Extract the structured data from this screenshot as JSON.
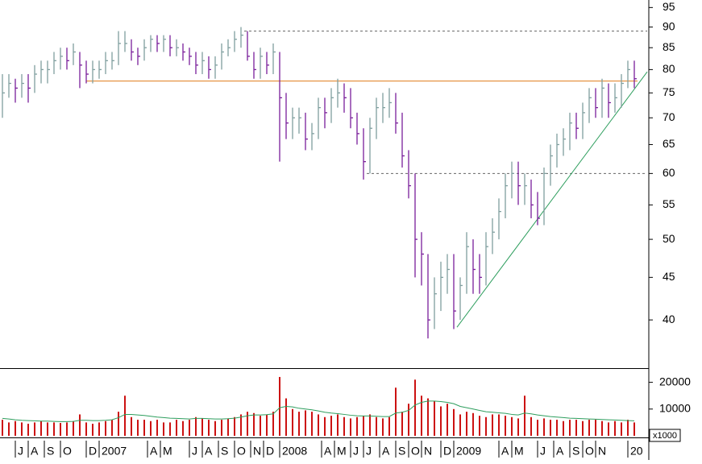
{
  "chart_data": {
    "type": "ohlc",
    "high": [
      79,
      79,
      78,
      79,
      79,
      81,
      82,
      82,
      84,
      85,
      85,
      86,
      84,
      82,
      82,
      82,
      84,
      84,
      89,
      89,
      87,
      85,
      87,
      88,
      88,
      88,
      88,
      87,
      86,
      85,
      84,
      84,
      83,
      83,
      86,
      87,
      89,
      90,
      89,
      84,
      85,
      84,
      86,
      84,
      75,
      72,
      72,
      71,
      69,
      74,
      74,
      76,
      78,
      77,
      76,
      71,
      68,
      70,
      74,
      75,
      76,
      75,
      71,
      64,
      60,
      51,
      48,
      45,
      47,
      48,
      48,
      45,
      51,
      50,
      48,
      51,
      53,
      56,
      60,
      62,
      62,
      60,
      59,
      57,
      61,
      65,
      67,
      68,
      71,
      71,
      73,
      76,
      76,
      78,
      77,
      77,
      79,
      82,
      82
    ],
    "low": [
      70,
      74,
      73,
      74,
      73,
      75,
      77,
      77,
      79,
      80,
      80,
      81,
      76,
      77,
      77,
      78,
      79,
      80,
      81,
      84,
      82,
      81,
      82,
      84,
      84,
      84,
      83,
      83,
      82,
      81,
      79,
      79,
      78,
      78,
      80,
      83,
      84,
      85,
      82,
      78,
      78,
      79,
      79,
      62,
      66,
      66,
      67,
      64,
      64,
      66,
      68,
      69,
      72,
      71,
      68,
      65,
      59,
      60,
      66,
      69,
      70,
      67,
      61,
      56,
      45,
      44,
      38,
      39,
      41,
      43,
      39,
      40,
      43,
      43,
      43,
      44,
      48,
      50,
      53,
      56,
      55,
      55,
      53,
      52,
      52,
      58,
      61,
      63,
      64,
      66,
      66,
      69,
      70,
      70,
      70,
      71,
      72,
      76,
      76
    ],
    "close": [
      75,
      77,
      76,
      77,
      76,
      79,
      80,
      80,
      82,
      83,
      82,
      84,
      81,
      79,
      80,
      80,
      82,
      82,
      86,
      86,
      84,
      83,
      85,
      87,
      86,
      87,
      85,
      85,
      84,
      83,
      81,
      82,
      80,
      81,
      84,
      85,
      87,
      88,
      83,
      80,
      83,
      81,
      84,
      74,
      69,
      70,
      70,
      66,
      67,
      72,
      71,
      74,
      75,
      74,
      70,
      67,
      62,
      68,
      72,
      72,
      73,
      69,
      63,
      58,
      50,
      48,
      40,
      43,
      45,
      46,
      41,
      44,
      49,
      46,
      45,
      49,
      51,
      54,
      58,
      60,
      58,
      58,
      55,
      53,
      60,
      63,
      65,
      66,
      69,
      68,
      71,
      74,
      72,
      76,
      73,
      74,
      77,
      80,
      78
    ],
    "up_color": "#7f9f9f",
    "down_color": "#7a1e9a",
    "ylim": [
      35,
      97
    ],
    "log_scale": true,
    "yticks": [
      40,
      45,
      50,
      55,
      60,
      65,
      70,
      75,
      80,
      85,
      90,
      95
    ],
    "reference_lines": [
      {
        "value": 77.5,
        "start": 13,
        "end": 98.5,
        "color": "#e07b1a",
        "style": "solid"
      },
      {
        "value": 89,
        "start": 37.5,
        "end": 100,
        "color": "#666666",
        "style": "dashed"
      },
      {
        "value": 60,
        "start": 56.5,
        "end": 100,
        "color": "#666666",
        "style": "dashed"
      }
    ],
    "trendline": {
      "start": [
        70.5,
        39.2
      ],
      "end": [
        100,
        79.5
      ],
      "color": "#2e9e5e"
    },
    "volume": {
      "values": [
        6000,
        5000,
        5500,
        5000,
        4500,
        5000,
        5500,
        5000,
        5000,
        4800,
        5000,
        5500,
        8000,
        5000,
        4500,
        5000,
        5500,
        6000,
        9000,
        15000,
        7000,
        6000,
        6000,
        5500,
        6000,
        5000,
        5000,
        6000,
        5500,
        6000,
        7000,
        6500,
        6000,
        5500,
        6000,
        6500,
        7000,
        8000,
        9000,
        8500,
        7500,
        8000,
        9000,
        22000,
        14000,
        10000,
        9000,
        9500,
        9000,
        8000,
        7000,
        7500,
        8000,
        7000,
        6500,
        7000,
        7500,
        8000,
        7000,
        6500,
        7000,
        18000,
        9000,
        12000,
        21000,
        15000,
        14000,
        13000,
        11000,
        12000,
        10000,
        8000,
        9000,
        8500,
        7500,
        7000,
        8000,
        8000,
        7500,
        7000,
        6500,
        15000,
        7000,
        6000,
        6500,
        6000,
        6000,
        5500,
        6000,
        6000,
        5500,
        6000,
        6000,
        5500,
        5000,
        5500,
        5000,
        6000,
        5000
      ],
      "color": "#cc1111",
      "average": [
        6500,
        6300,
        6000,
        5800,
        5700,
        5600,
        5500,
        5500,
        5400,
        5300,
        5300,
        5400,
        5800,
        5800,
        5700,
        5700,
        5800,
        6000,
        6800,
        8000,
        8000,
        7800,
        7600,
        7300,
        7000,
        6800,
        6600,
        6500,
        6400,
        6300,
        6500,
        6500,
        6400,
        6300,
        6300,
        6400,
        6600,
        7000,
        7500,
        7800,
        7800,
        7900,
        8200,
        10500,
        11000,
        10800,
        10300,
        10000,
        9700,
        9300,
        8800,
        8500,
        8300,
        8000,
        7700,
        7500,
        7400,
        7400,
        7300,
        7200,
        7200,
        8500,
        8800,
        9500,
        11500,
        12500,
        13000,
        13000,
        12800,
        12500,
        12000,
        11000,
        10500,
        10000,
        9500,
        9000,
        8800,
        8600,
        8400,
        8000,
        7800,
        8500,
        8200,
        7800,
        7500,
        7200,
        7000,
        6800,
        6600,
        6500,
        6400,
        6300,
        6200,
        6100,
        6000,
        5900,
        5800,
        5700,
        5600
      ],
      "average_color": "#2e9e5e",
      "ylim": [
        0,
        25000
      ],
      "yticks": [
        10000,
        20000
      ],
      "unit_label": "x1000"
    },
    "xticks": [
      {
        "value": 2,
        "label": "J"
      },
      {
        "value": 4,
        "label": "A"
      },
      {
        "value": 6.5,
        "label": "S"
      },
      {
        "value": 9,
        "label": "O"
      },
      {
        "value": 13,
        "label": "D"
      },
      {
        "value": 15,
        "label": "2007"
      },
      {
        "value": 22.5,
        "label": "A"
      },
      {
        "value": 24.5,
        "label": "M"
      },
      {
        "value": 29,
        "label": "J"
      },
      {
        "value": 31,
        "label": "A"
      },
      {
        "value": 33.5,
        "label": "S"
      },
      {
        "value": 36,
        "label": "O"
      },
      {
        "value": 38.5,
        "label": "N"
      },
      {
        "value": 40.5,
        "label": "D"
      },
      {
        "value": 43,
        "label": "2008"
      },
      {
        "value": 49.5,
        "label": "A"
      },
      {
        "value": 51.5,
        "label": "M"
      },
      {
        "value": 54,
        "label": "J"
      },
      {
        "value": 56,
        "label": "J"
      },
      {
        "value": 58.5,
        "label": "A"
      },
      {
        "value": 61,
        "label": "S"
      },
      {
        "value": 63,
        "label": "O"
      },
      {
        "value": 65,
        "label": "N"
      },
      {
        "value": 68,
        "label": "D"
      },
      {
        "value": 70,
        "label": "2009"
      },
      {
        "value": 77,
        "label": "A"
      },
      {
        "value": 79,
        "label": "M"
      },
      {
        "value": 83,
        "label": "J"
      },
      {
        "value": 85.5,
        "label": "A"
      },
      {
        "value": 88,
        "label": "S"
      },
      {
        "value": 90,
        "label": "O"
      },
      {
        "value": 92,
        "label": "N"
      },
      {
        "value": 97,
        "label": "20"
      }
    ]
  }
}
